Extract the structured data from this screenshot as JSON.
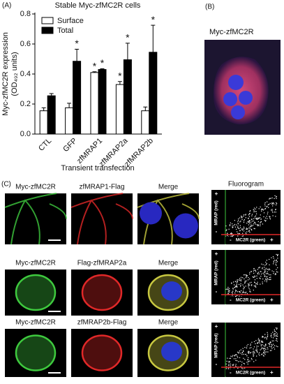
{
  "chart_data": {
    "type": "bar",
    "panel_letter": "(A)",
    "title": "Stable Myc-zfMC2R cells",
    "y_label": [
      "Myc-zfMC2R expression",
      "(OD₄₉₂ units)"
    ],
    "x_label": "Transient transfection",
    "categories": [
      "CTL",
      "GFP",
      "zfMRAP1",
      "zfMRAP2a",
      "zfMRAP2b"
    ],
    "series": [
      {
        "name": "Surface",
        "color": "#ffffff",
        "values": [
          0.155,
          0.175,
          0.41,
          0.33,
          0.155
        ],
        "errors": [
          0.02,
          0.03,
          0.005,
          0.02,
          0.025
        ],
        "significance": [
          null,
          null,
          "*",
          "*",
          null
        ]
      },
      {
        "name": "Total",
        "color": "#000000",
        "values": [
          0.255,
          0.485,
          0.43,
          0.495,
          0.545
        ],
        "errors": [
          0.015,
          0.08,
          0.005,
          0.11,
          0.18
        ],
        "significance": [
          null,
          "*",
          "*",
          "*",
          "*"
        ]
      }
    ],
    "ylim": [
      0,
      0.8
    ],
    "yticks": [
      {
        "value": 0,
        "label": "0.0"
      },
      0.2,
      0.4,
      0.6,
      0.8
    ],
    "grid": false
  },
  "panel_b": {
    "letter": "(B)",
    "label": "Myc-zfMC2R"
  },
  "panel_c": {
    "letter": "(C)",
    "rows": [
      [
        "Myc-zfMC2R",
        "zfMRAP1-Flag",
        "Merge"
      ],
      [
        "Myc-zfMC2R",
        "Flag-zfMRAP2a",
        "Merge"
      ],
      [
        "Myc-zfMC2R",
        "zfMRAP2b-Flag",
        "Merge"
      ]
    ],
    "fluorogram": {
      "title": "Fluorogram",
      "x_label": "MC2R (green)",
      "y_label": "MRAP (red)",
      "minus": "-",
      "plus": "+"
    }
  }
}
